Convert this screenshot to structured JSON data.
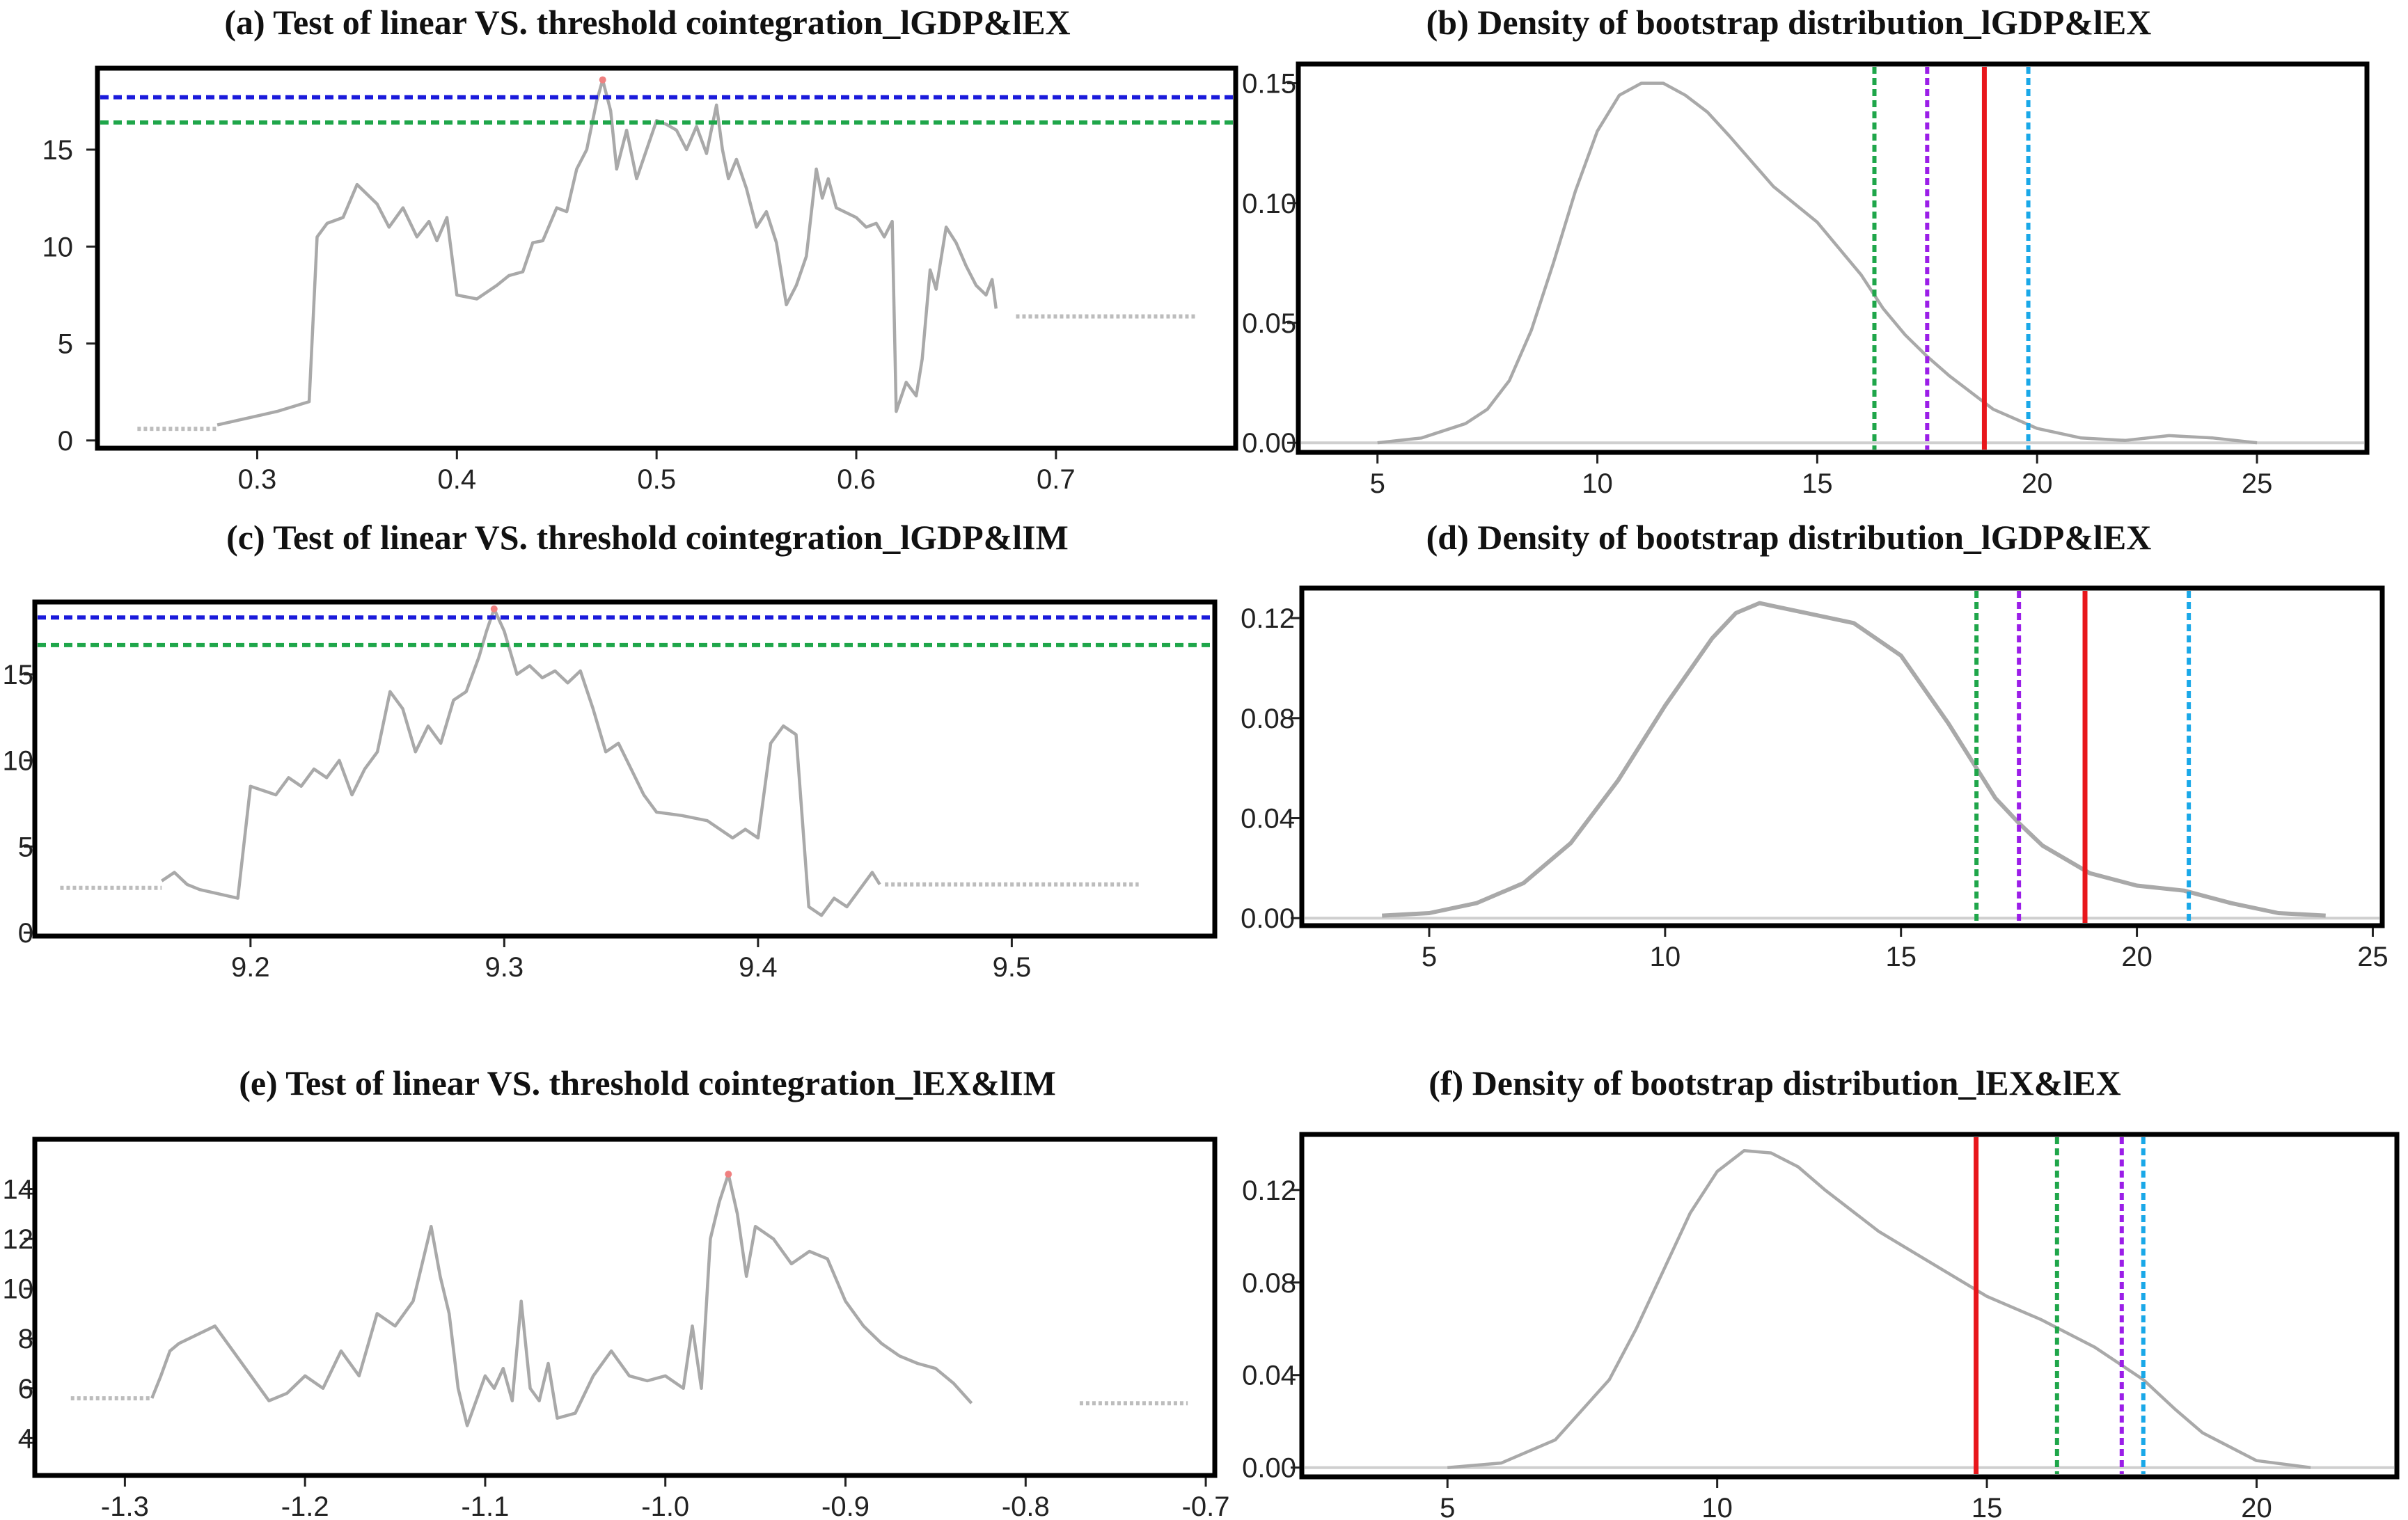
{
  "colors": {
    "frame": "#000000",
    "curve": "#a9a9a9",
    "blue": "#1a1adb",
    "green": "#1fa64a",
    "purple": "#9b1ee8",
    "red": "#e8161b",
    "cyan": "#1aa8e8",
    "flat": "#bdbdbd",
    "peak": "#f08080"
  },
  "chart_data": [
    {
      "id": "a",
      "type": "line",
      "title": "(a) Test of linear VS. threshold cointegration_lGDP&lEX",
      "xlim": [
        0.22,
        0.79
      ],
      "ylim": [
        -0.4,
        19.2
      ],
      "xticks": [
        {
          "v": 0.3,
          "label": "0.3"
        },
        {
          "v": 0.4,
          "label": "0.4"
        },
        {
          "v": 0.5,
          "label": "0.5"
        },
        {
          "v": 0.6,
          "label": "0.6"
        },
        {
          "v": 0.7,
          "label": "0.7"
        }
      ],
      "yticks": [
        {
          "v": 0,
          "label": "0"
        },
        {
          "v": 5,
          "label": "5"
        },
        {
          "v": 10,
          "label": "10"
        },
        {
          "v": 15,
          "label": "15"
        }
      ],
      "hlines": [
        {
          "name": "critical-blue",
          "y": 17.7,
          "color": "blue"
        },
        {
          "name": "critical-green",
          "y": 16.4,
          "color": "green"
        }
      ],
      "flat_segments": [
        {
          "x1": 0.24,
          "x2": 0.28,
          "y": 0.6
        },
        {
          "x1": 0.68,
          "x2": 0.77,
          "y": 6.4
        }
      ],
      "peak": {
        "x": 0.473,
        "y": 18.6
      },
      "series": [
        {
          "name": "test-statistic",
          "x": [
            0.28,
            0.31,
            0.326,
            0.33,
            0.335,
            0.343,
            0.35,
            0.36,
            0.366,
            0.373,
            0.38,
            0.386,
            0.39,
            0.395,
            0.4,
            0.41,
            0.42,
            0.426,
            0.433,
            0.438,
            0.443,
            0.45,
            0.455,
            0.46,
            0.465,
            0.47,
            0.473,
            0.477,
            0.48,
            0.485,
            0.49,
            0.495,
            0.5,
            0.505,
            0.51,
            0.515,
            0.52,
            0.525,
            0.53,
            0.533,
            0.536,
            0.54,
            0.545,
            0.55,
            0.555,
            0.56,
            0.565,
            0.57,
            0.575,
            0.58,
            0.583,
            0.586,
            0.59,
            0.6,
            0.605,
            0.61,
            0.614,
            0.618,
            0.62,
            0.625,
            0.63,
            0.633,
            0.637,
            0.64,
            0.645,
            0.65,
            0.655,
            0.66,
            0.665,
            0.668,
            0.67
          ],
          "y": [
            0.8,
            1.5,
            2.0,
            10.5,
            11.2,
            11.5,
            13.2,
            12.2,
            11.0,
            12.0,
            10.5,
            11.3,
            10.3,
            11.5,
            7.5,
            7.3,
            8.0,
            8.5,
            8.7,
            10.2,
            10.3,
            12.0,
            11.8,
            14.0,
            15.0,
            17.5,
            18.6,
            17.0,
            14.0,
            16.0,
            13.5,
            15.0,
            16.5,
            16.3,
            16.0,
            15.0,
            16.2,
            14.8,
            17.3,
            15.0,
            13.5,
            14.5,
            13.0,
            11.0,
            11.8,
            10.2,
            7.0,
            8.0,
            9.5,
            14.0,
            12.5,
            13.5,
            12.0,
            11.5,
            11.0,
            11.2,
            10.5,
            11.3,
            1.5,
            3.0,
            2.3,
            4.2,
            8.8,
            7.8,
            11.0,
            10.2,
            9.0,
            8.0,
            7.5,
            8.3,
            6.8
          ]
        }
      ]
    },
    {
      "id": "b",
      "type": "line",
      "title": "(b) Density of bootstrap distribution_lGDP&lEX",
      "xlim": [
        3.2,
        27.5
      ],
      "ylim": [
        -0.004,
        0.158
      ],
      "xticks": [
        {
          "v": 5,
          "label": "5"
        },
        {
          "v": 10,
          "label": "10"
        },
        {
          "v": 15,
          "label": "15"
        },
        {
          "v": 20,
          "label": "20"
        },
        {
          "v": 25,
          "label": "25"
        }
      ],
      "yticks": [
        {
          "v": 0,
          "label": "0.00"
        },
        {
          "v": 0.05,
          "label": "0.05"
        },
        {
          "v": 0.1,
          "label": "0.10"
        },
        {
          "v": 0.15,
          "label": "0.15"
        }
      ],
      "baseline": 0,
      "vlines": [
        {
          "name": "green",
          "x": 16.3,
          "color": "green",
          "dash": true
        },
        {
          "name": "purple",
          "x": 17.5,
          "color": "purple",
          "dash": true
        },
        {
          "name": "red",
          "x": 18.8,
          "color": "red",
          "dash": false
        },
        {
          "name": "cyan",
          "x": 19.8,
          "color": "cyan",
          "dash": true
        }
      ],
      "series": [
        {
          "name": "density",
          "x": [
            5,
            6,
            7,
            7.5,
            8,
            8.5,
            9,
            9.5,
            10,
            10.5,
            11,
            11.5,
            12,
            12.5,
            13,
            14,
            15,
            16,
            16.5,
            17,
            17.5,
            18,
            19,
            20,
            21,
            22,
            23,
            24,
            25
          ],
          "y": [
            0.0,
            0.002,
            0.008,
            0.014,
            0.026,
            0.047,
            0.075,
            0.105,
            0.13,
            0.145,
            0.15,
            0.15,
            0.145,
            0.138,
            0.128,
            0.107,
            0.092,
            0.07,
            0.056,
            0.045,
            0.036,
            0.028,
            0.014,
            0.006,
            0.002,
            0.001,
            0.003,
            0.002,
            0.0
          ]
        }
      ]
    },
    {
      "id": "c",
      "type": "line",
      "title": "(c) Test of linear VS. threshold cointegration_lGDP&lIM",
      "xlim": [
        9.115,
        9.58
      ],
      "ylim": [
        -0.2,
        19.2
      ],
      "xticks": [
        {
          "v": 9.2,
          "label": "9.2"
        },
        {
          "v": 9.3,
          "label": "9.3"
        },
        {
          "v": 9.4,
          "label": "9.4"
        },
        {
          "v": 9.5,
          "label": "9.5"
        }
      ],
      "yticks": [
        {
          "v": 0,
          "label": "0"
        },
        {
          "v": 5,
          "label": "5"
        },
        {
          "v": 10,
          "label": "10"
        },
        {
          "v": 15,
          "label": "15"
        }
      ],
      "hlines": [
        {
          "name": "critical-blue",
          "y": 18.3,
          "color": "blue"
        },
        {
          "name": "critical-green",
          "y": 16.7,
          "color": "green"
        }
      ],
      "flat_segments": [
        {
          "x1": 9.125,
          "x2": 9.165,
          "y": 2.6
        },
        {
          "x1": 9.45,
          "x2": 9.55,
          "y": 2.8
        }
      ],
      "peak": {
        "x": 9.296,
        "y": 18.8
      },
      "series": [
        {
          "name": "test-statistic",
          "x": [
            9.165,
            9.17,
            9.175,
            9.18,
            9.195,
            9.2,
            9.21,
            9.215,
            9.22,
            9.225,
            9.23,
            9.235,
            9.24,
            9.245,
            9.25,
            9.255,
            9.26,
            9.265,
            9.27,
            9.275,
            9.28,
            9.285,
            9.29,
            9.293,
            9.296,
            9.3,
            9.305,
            9.31,
            9.315,
            9.32,
            9.325,
            9.33,
            9.335,
            9.34,
            9.345,
            9.35,
            9.355,
            9.36,
            9.37,
            9.38,
            9.39,
            9.395,
            9.4,
            9.405,
            9.41,
            9.415,
            9.42,
            9.425,
            9.43,
            9.435,
            9.44,
            9.445,
            9.448
          ],
          "y": [
            3.0,
            3.5,
            2.8,
            2.5,
            2.0,
            8.5,
            8.0,
            9.0,
            8.5,
            9.5,
            9.0,
            10.0,
            8.0,
            9.5,
            10.5,
            14.0,
            13.0,
            10.5,
            12.0,
            11.0,
            13.5,
            14.0,
            16.0,
            17.5,
            18.8,
            17.5,
            15.0,
            15.5,
            14.8,
            15.2,
            14.5,
            15.2,
            13.0,
            10.5,
            11.0,
            9.5,
            8.0,
            7.0,
            6.8,
            6.5,
            5.5,
            6.0,
            5.5,
            11.0,
            12.0,
            11.5,
            1.5,
            1.0,
            2.0,
            1.5,
            2.5,
            3.5,
            2.8
          ]
        }
      ]
    },
    {
      "id": "d",
      "type": "line",
      "title": "(d) Density of bootstrap distribution_lGDP&lEX",
      "xlim": [
        2.3,
        25.2
      ],
      "ylim": [
        -0.003,
        0.132
      ],
      "xticks": [
        {
          "v": 5,
          "label": "5"
        },
        {
          "v": 10,
          "label": "10"
        },
        {
          "v": 15,
          "label": "15"
        },
        {
          "v": 20,
          "label": "20"
        },
        {
          "v": 25,
          "label": "25"
        }
      ],
      "yticks": [
        {
          "v": 0,
          "label": "0.00"
        },
        {
          "v": 0.04,
          "label": "0.04"
        },
        {
          "v": 0.08,
          "label": "0.08"
        },
        {
          "v": 0.12,
          "label": "0.12"
        }
      ],
      "baseline": 0,
      "vlines": [
        {
          "name": "green",
          "x": 16.6,
          "color": "green",
          "dash": true
        },
        {
          "name": "purple",
          "x": 17.5,
          "color": "purple",
          "dash": true
        },
        {
          "name": "red",
          "x": 18.9,
          "color": "red",
          "dash": false
        },
        {
          "name": "cyan",
          "x": 21.1,
          "color": "cyan",
          "dash": true
        }
      ],
      "series": [
        {
          "name": "density",
          "x": [
            4,
            5,
            6,
            7,
            8,
            9,
            10,
            11,
            11.5,
            12,
            13,
            14,
            15,
            16,
            16.6,
            17,
            17.5,
            18,
            19,
            20,
            21,
            22,
            23,
            24
          ],
          "y": [
            0.001,
            0.002,
            0.006,
            0.014,
            0.03,
            0.055,
            0.085,
            0.112,
            0.122,
            0.126,
            0.122,
            0.118,
            0.105,
            0.078,
            0.06,
            0.048,
            0.038,
            0.029,
            0.018,
            0.013,
            0.011,
            0.006,
            0.002,
            0.001
          ]
        }
      ]
    },
    {
      "id": "e",
      "type": "line",
      "title": "(e) Test of linear VS. threshold cointegration_lEX&lIM",
      "xlim": [
        -1.35,
        -0.695
      ],
      "ylim": [
        2.5,
        16.0
      ],
      "xticks": [
        {
          "v": -1.3,
          "label": "-1.3"
        },
        {
          "v": -1.2,
          "label": "-1.2"
        },
        {
          "v": -1.1,
          "label": "-1.1"
        },
        {
          "v": -1.0,
          "label": "-1.0"
        },
        {
          "v": -0.9,
          "label": "-0.9"
        },
        {
          "v": -0.8,
          "label": "-0.8"
        },
        {
          "v": -0.7,
          "label": "-0.7"
        }
      ],
      "yticks": [
        {
          "v": 4,
          "label": "4"
        },
        {
          "v": 6,
          "label": "6"
        },
        {
          "v": 8,
          "label": "8"
        },
        {
          "v": 10,
          "label": "10"
        },
        {
          "v": 12,
          "label": "12"
        },
        {
          "v": 14,
          "label": "14"
        }
      ],
      "hlines": [],
      "flat_segments": [
        {
          "x1": -1.33,
          "x2": -1.285,
          "y": 5.6
        },
        {
          "x1": -0.77,
          "x2": -0.71,
          "y": 5.4
        }
      ],
      "peak": {
        "x": -0.965,
        "y": 14.6
      },
      "series": [
        {
          "name": "test-statistic",
          "x": [
            -1.285,
            -1.28,
            -1.275,
            -1.27,
            -1.25,
            -1.22,
            -1.21,
            -1.2,
            -1.19,
            -1.18,
            -1.17,
            -1.16,
            -1.15,
            -1.14,
            -1.135,
            -1.13,
            -1.125,
            -1.12,
            -1.115,
            -1.11,
            -1.1,
            -1.095,
            -1.09,
            -1.085,
            -1.08,
            -1.075,
            -1.07,
            -1.065,
            -1.06,
            -1.05,
            -1.04,
            -1.03,
            -1.02,
            -1.01,
            -1.0,
            -0.99,
            -0.985,
            -0.98,
            -0.975,
            -0.97,
            -0.965,
            -0.96,
            -0.955,
            -0.95,
            -0.94,
            -0.93,
            -0.92,
            -0.91,
            -0.9,
            -0.89,
            -0.88,
            -0.87,
            -0.86,
            -0.85,
            -0.84,
            -0.83
          ],
          "y": [
            5.6,
            6.5,
            7.5,
            7.8,
            8.5,
            5.5,
            5.8,
            6.5,
            6.0,
            7.5,
            6.5,
            9.0,
            8.5,
            9.5,
            11.0,
            12.5,
            10.5,
            9.0,
            6.0,
            4.5,
            6.5,
            6.0,
            6.8,
            5.5,
            9.5,
            6.0,
            5.5,
            7.0,
            4.8,
            5.0,
            6.5,
            7.5,
            6.5,
            6.3,
            6.5,
            6.0,
            8.5,
            6.0,
            12.0,
            13.5,
            14.6,
            13.0,
            10.5,
            12.5,
            12.0,
            11.0,
            11.5,
            11.2,
            9.5,
            8.5,
            7.8,
            7.3,
            7.0,
            6.8,
            6.2,
            5.4
          ]
        }
      ]
    },
    {
      "id": "f",
      "type": "line",
      "title": "(f) Density of bootstrap distribution_lEX&lEX",
      "xlim": [
        2.3,
        22.6
      ],
      "ylim": [
        -0.004,
        0.144
      ],
      "xticks": [
        {
          "v": 5,
          "label": "5"
        },
        {
          "v": 10,
          "label": "10"
        },
        {
          "v": 15,
          "label": "15"
        },
        {
          "v": 20,
          "label": "20"
        }
      ],
      "yticks": [
        {
          "v": 0,
          "label": "0.00"
        },
        {
          "v": 0.04,
          "label": "0.04"
        },
        {
          "v": 0.08,
          "label": "0.08"
        },
        {
          "v": 0.12,
          "label": "0.12"
        }
      ],
      "baseline": 0,
      "vlines": [
        {
          "name": "red",
          "x": 14.8,
          "color": "red",
          "dash": false
        },
        {
          "name": "green",
          "x": 16.3,
          "color": "green",
          "dash": true
        },
        {
          "name": "purple",
          "x": 17.5,
          "color": "purple",
          "dash": true
        },
        {
          "name": "cyan",
          "x": 17.9,
          "color": "cyan",
          "dash": true
        }
      ],
      "series": [
        {
          "name": "density",
          "x": [
            5,
            6,
            7,
            8,
            8.5,
            9,
            9.5,
            10,
            10.5,
            11,
            11.5,
            12,
            13,
            14,
            15,
            16,
            17,
            17.9,
            18.5,
            19,
            20,
            21
          ],
          "y": [
            0.0,
            0.002,
            0.012,
            0.038,
            0.06,
            0.085,
            0.11,
            0.128,
            0.137,
            0.136,
            0.13,
            0.12,
            0.102,
            0.088,
            0.074,
            0.064,
            0.052,
            0.038,
            0.025,
            0.015,
            0.003,
            0.0
          ]
        }
      ]
    }
  ]
}
